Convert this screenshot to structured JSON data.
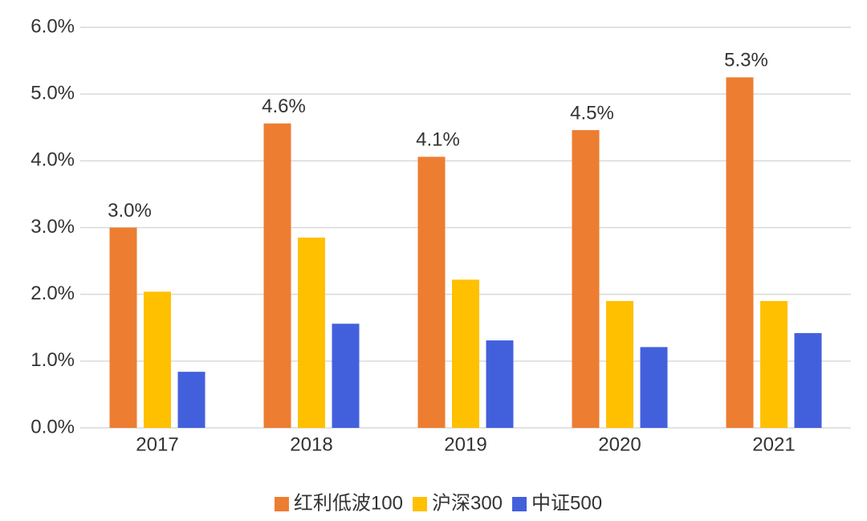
{
  "chart_data": {
    "type": "bar",
    "categories": [
      "2017",
      "2018",
      "2019",
      "2020",
      "2021"
    ],
    "series": [
      {
        "name": "红利低波100",
        "color": "#ED7D31",
        "values": [
          3.0,
          4.56,
          4.06,
          4.46,
          5.25
        ],
        "value_labels": [
          "3.0%",
          "4.6%",
          "4.1%",
          "4.5%",
          "5.3%"
        ]
      },
      {
        "name": "沪深300",
        "color": "#FFC000",
        "values": [
          2.04,
          2.85,
          2.22,
          1.9,
          1.9
        ]
      },
      {
        "name": "中证500",
        "color": "#4360DC",
        "values": [
          0.84,
          1.56,
          1.31,
          1.21,
          1.42
        ]
      }
    ],
    "ylim": [
      0,
      6
    ],
    "yticks": [
      {
        "value": 0,
        "label": "0.0%"
      },
      {
        "value": 1,
        "label": "1.0%"
      },
      {
        "value": 2,
        "label": "2.0%"
      },
      {
        "value": 3,
        "label": "3.0%"
      },
      {
        "value": 4,
        "label": "4.0%"
      },
      {
        "value": 5,
        "label": "5.0%"
      },
      {
        "value": 6,
        "label": "6.0%"
      }
    ],
    "grid": true,
    "legend": "bottom"
  }
}
